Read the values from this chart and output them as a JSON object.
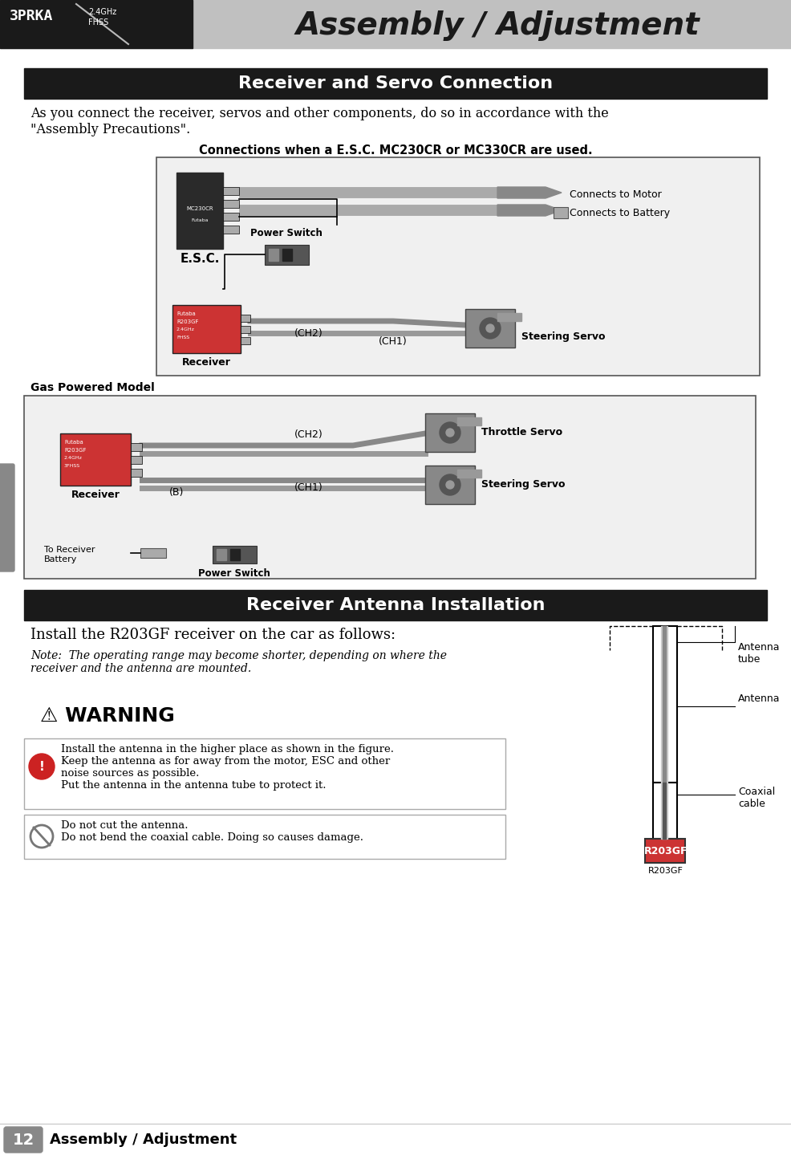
{
  "page_bg": "#ffffff",
  "header_bg": "#1a1a1a",
  "header_text": "Assembly / Adjustment",
  "header_gray_bg": "#c0c0c0",
  "section1_bg": "#1a1a1a",
  "section1_text": "Receiver and Servo Connection",
  "section2_bg": "#1a1a1a",
  "section2_text": "Receiver Antenna Installation",
  "intro_text": "As you connect the receiver, servos and other components, do so in accordance with the\n\"Assembly Precautions\".",
  "diagram1_title": "Connections when a E.S.C. MC230CR or MC330CR are used.",
  "diagram2_title": "Gas Powered Model",
  "antenna_title": "Install the R203GF receiver on the car as follows:",
  "antenna_note": "Note:  The operating range may become shorter, depending on where the\nreceiver and the antenna are mounted.",
  "warning_title": "⚠ WARNING",
  "warning_text1": "Install the antenna in the higher place as shown in the figure.\nKeep the antenna as for away from the motor, ESC and other\nnoise sources as possible.\nPut the antenna in the antenna tube to protect it.",
  "warning_text2": "Do not cut the antenna.\nDo not bend the coaxial cable. Doing so causes damage.",
  "antenna_labels": [
    "Antenna\ntube",
    "Antenna",
    "Coaxial\ncable",
    "R203GF"
  ],
  "footer_num": "12",
  "footer_text": "Assembly / Adjustment",
  "left_tab_color": "#888888",
  "diagram_border": "#555555",
  "diagram_fill": "#f0f0f0",
  "receiver_color": "#cc3333",
  "servo_color": "#888888",
  "wire_color": "#999999",
  "warning_box_border": "#aaaaaa",
  "warning_icon_fill": "#cc2222"
}
